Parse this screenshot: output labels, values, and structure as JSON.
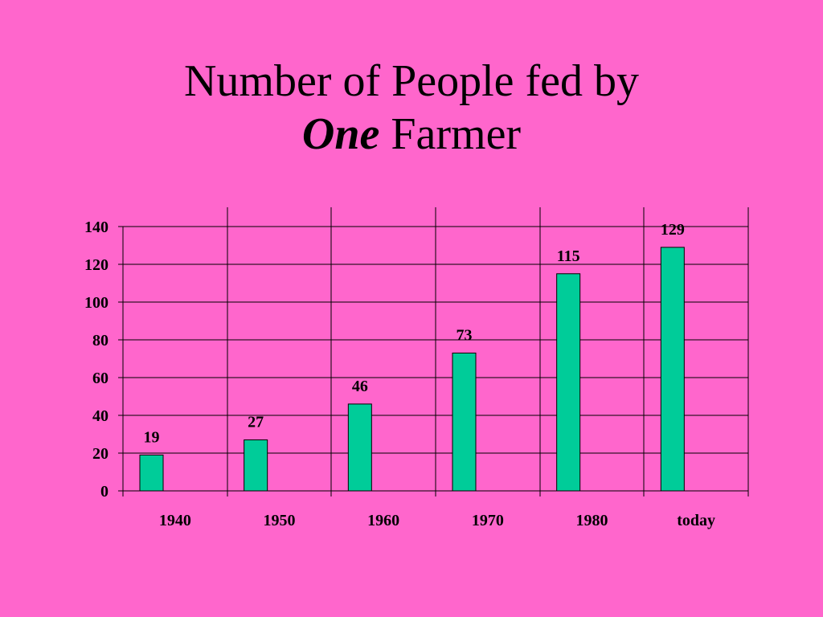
{
  "title": {
    "line1": "Number of People fed by",
    "line2_emphasis": "One",
    "line2_rest": "Farmer"
  },
  "colors": {
    "background": "#FF66CC",
    "bar": "#00CC99",
    "lines": "#000000"
  },
  "chart_data": {
    "type": "bar",
    "title": "Number of People fed by One Farmer",
    "xlabel": "",
    "ylabel": "",
    "categories": [
      "1940",
      "1950",
      "1960",
      "1970",
      "1980",
      "today"
    ],
    "values": [
      19,
      27,
      46,
      73,
      115,
      129
    ],
    "data_labels": [
      "19",
      "27",
      "46",
      "73",
      "115",
      "129"
    ],
    "ylim": [
      0,
      140
    ],
    "yticks": [
      0,
      20,
      40,
      60,
      80,
      100,
      120,
      140
    ],
    "grid": "horizontal and vertical",
    "legend": "none"
  }
}
